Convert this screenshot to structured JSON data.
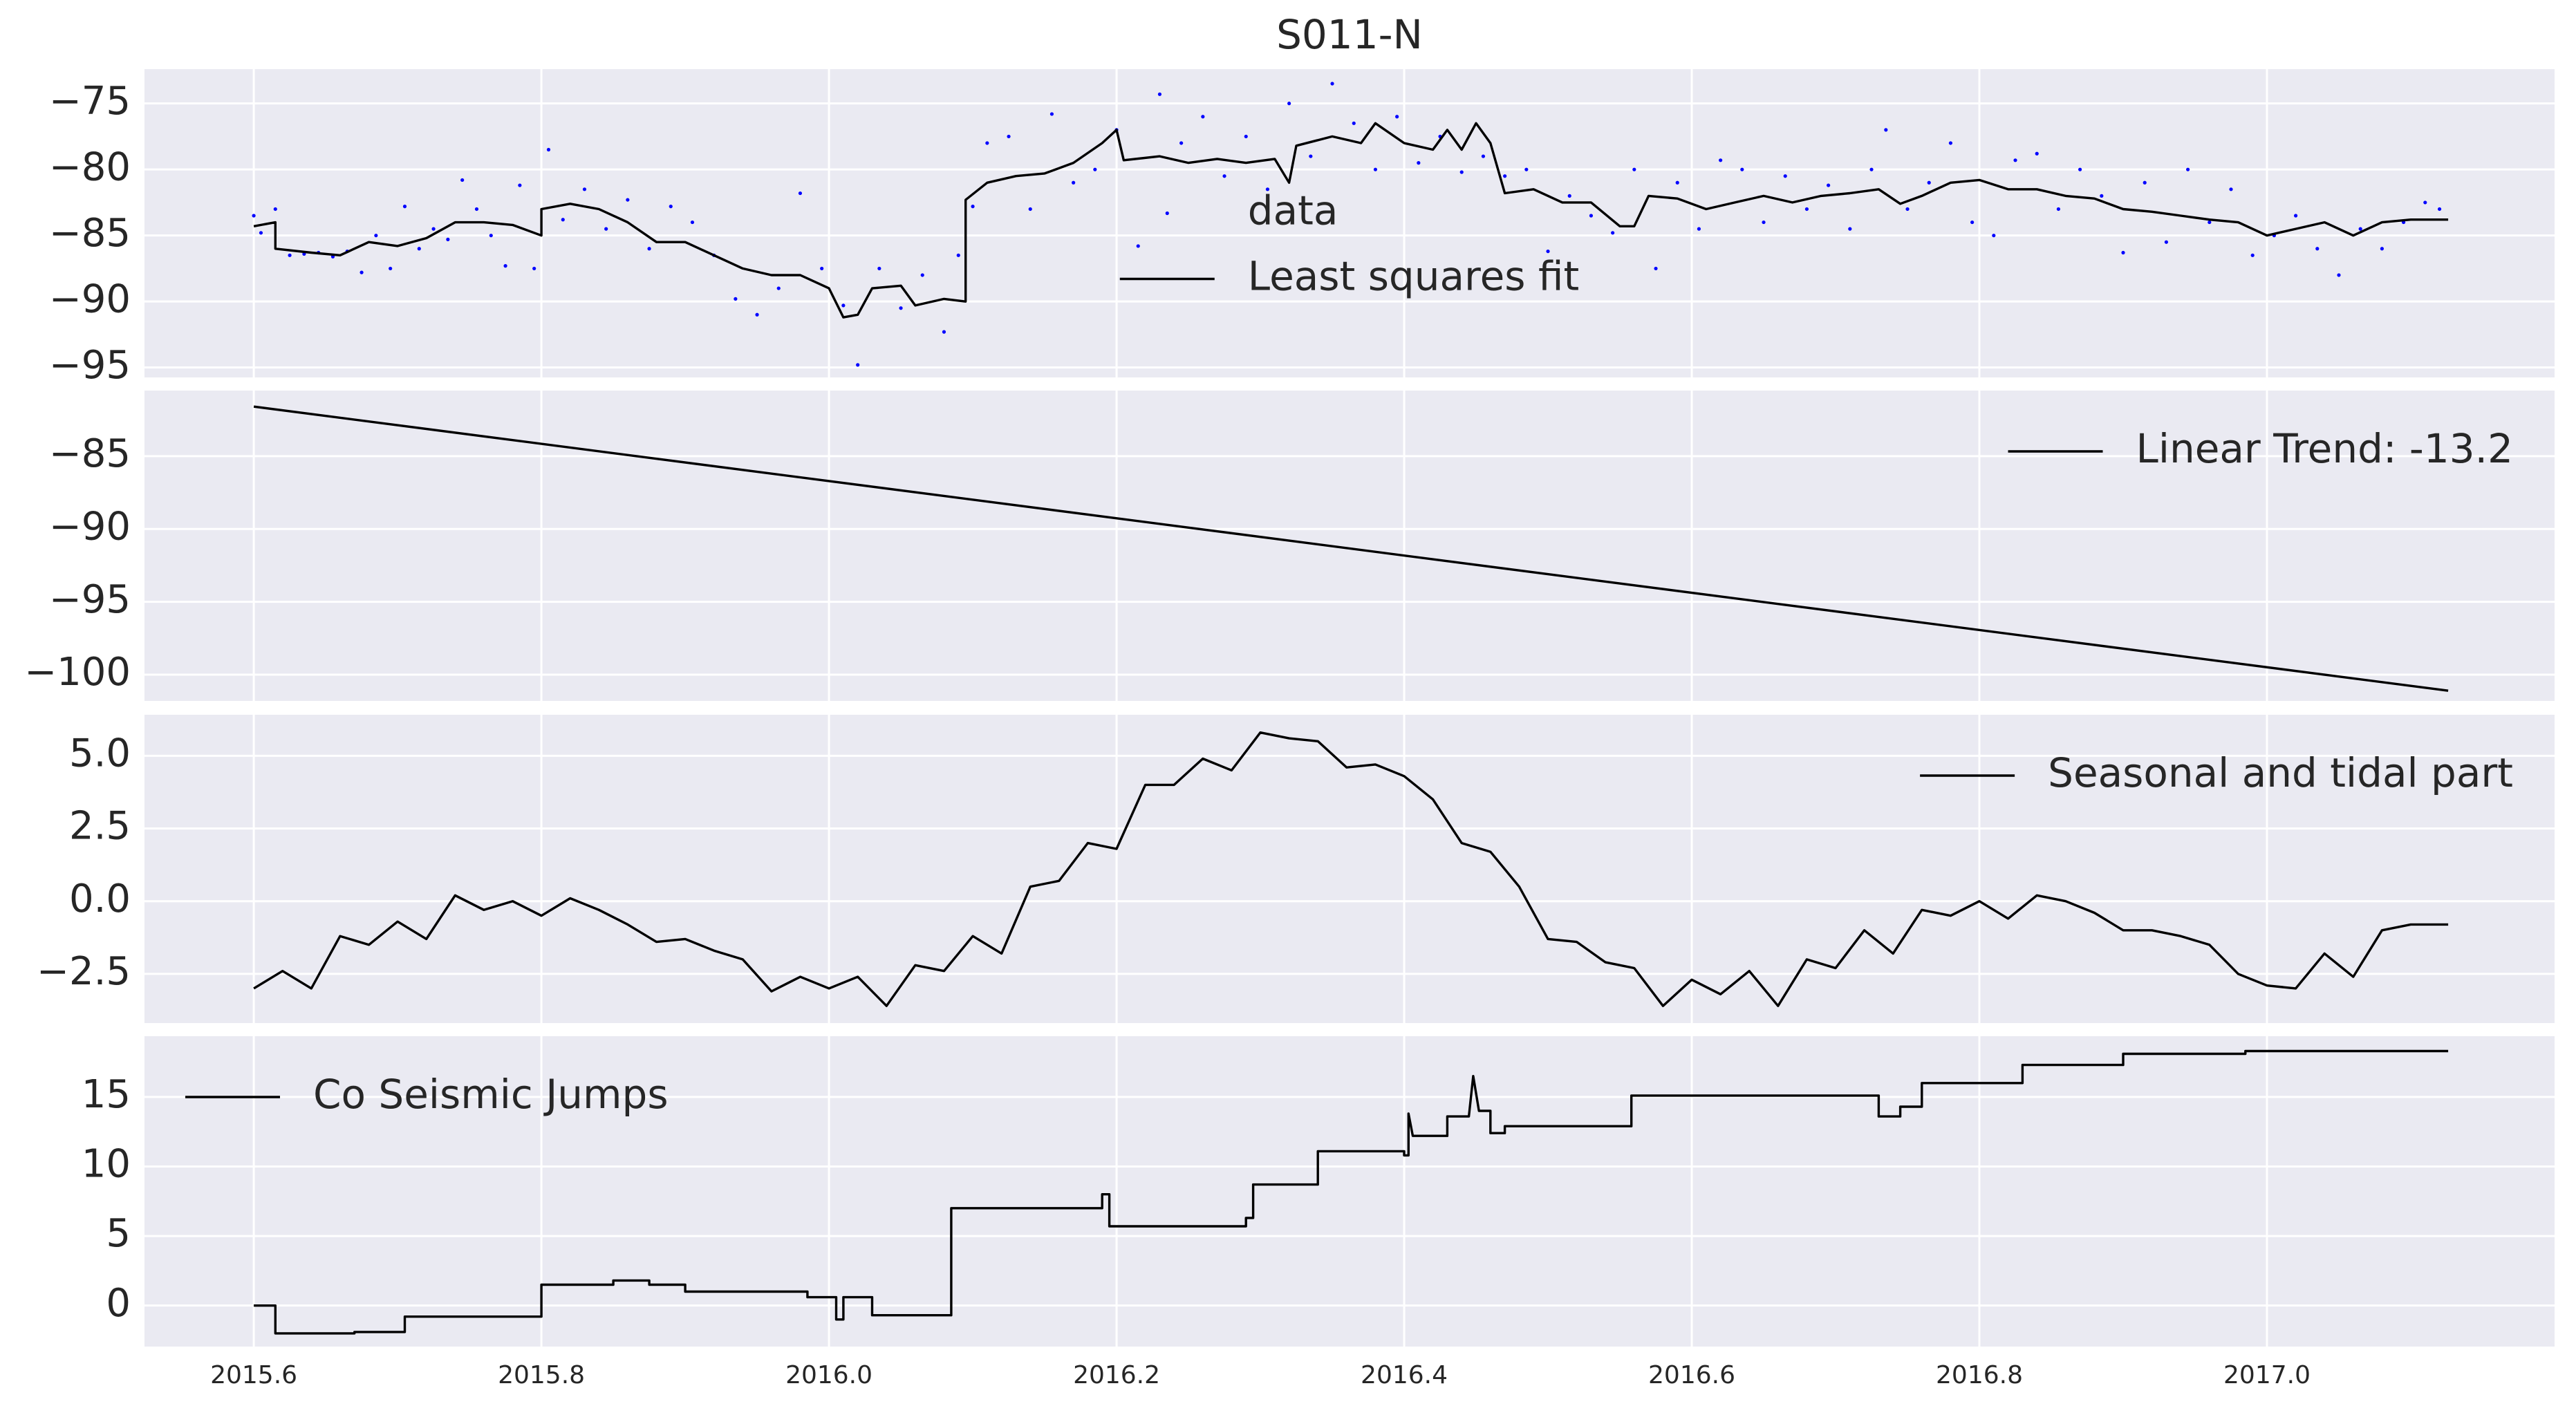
{
  "chart_data": [
    {
      "type": "line",
      "title": "S011-N",
      "legend": "center",
      "grid": true,
      "xlim": [
        2015.524,
        2017.2
      ],
      "ylim": [
        -95.75,
        -72.4
      ],
      "yticks": [
        {
          "value": -95,
          "label": "−95"
        },
        {
          "value": -90,
          "label": "−90"
        },
        {
          "value": -85,
          "label": "−85"
        },
        {
          "value": -80,
          "label": "−80"
        },
        {
          "value": -75,
          "label": "−75"
        }
      ],
      "series": [
        {
          "name": "data",
          "color": "#0000ff",
          "marker": true,
          "x": [
            2015.6,
            2015.605,
            2015.615,
            2015.625,
            2015.635,
            2015.645,
            2015.655,
            2015.665,
            2015.675,
            2015.685,
            2015.695,
            2015.705,
            2015.715,
            2015.725,
            2015.735,
            2015.745,
            2015.755,
            2015.765,
            2015.775,
            2015.785,
            2015.795,
            2015.805,
            2015.815,
            2015.83,
            2015.845,
            2015.86,
            2015.875,
            2015.89,
            2015.905,
            2015.92,
            2015.935,
            2015.95,
            2015.965,
            2015.98,
            2015.995,
            2016.01,
            2016.02,
            2016.035,
            2016.05,
            2016.065,
            2016.08,
            2016.09,
            2016.1,
            2016.11,
            2016.125,
            2016.14,
            2016.155,
            2016.17,
            2016.185,
            2016.2,
            2016.215,
            2016.23,
            2016.245,
            2016.26,
            2016.275,
            2016.29,
            2016.305,
            2016.32,
            2016.335,
            2016.35,
            2016.365,
            2016.38,
            2016.395,
            2016.41,
            2016.425,
            2016.44,
            2016.455,
            2016.47,
            2016.485,
            2016.5,
            2016.515,
            2016.53,
            2016.545,
            2016.56,
            2016.575,
            2016.59,
            2016.605,
            2016.62,
            2016.635,
            2016.65,
            2016.665,
            2016.68,
            2016.695,
            2016.71,
            2016.725,
            2016.735,
            2016.75,
            2016.765,
            2016.78,
            2016.795,
            2016.81,
            2016.825,
            2016.84,
            2016.855,
            2016.87,
            2016.885,
            2016.9,
            2016.915,
            2016.93,
            2016.945,
            2016.96,
            2016.975,
            2016.99,
            2017.005,
            2017.02,
            2017.035,
            2017.05,
            2017.065,
            2017.08,
            2017.095,
            2017.11,
            2017.12
          ],
          "values": [
            -83.5,
            -84.8,
            -83.0,
            -86.5,
            -86.4,
            -86.3,
            -86.6,
            -86.2,
            -87.8,
            -85.0,
            -87.5,
            -82.8,
            -86.0,
            -84.5,
            -85.3,
            -80.8,
            -83.0,
            -85.0,
            -87.3,
            -81.2,
            -87.5,
            -78.5,
            -83.8,
            -81.5,
            -84.5,
            -82.3,
            -86.0,
            -82.8,
            -84.0,
            -86.5,
            -89.8,
            -91.0,
            -89.0,
            -81.8,
            -87.5,
            -90.3,
            -94.8,
            -87.5,
            -90.5,
            -88.0,
            -92.3,
            -86.5,
            -82.8,
            -78.0,
            -77.5,
            -83.0,
            -75.8,
            -81.0,
            -80.0,
            -77.0,
            -85.8,
            -74.3,
            -78.0,
            -76.0,
            -80.5,
            -77.5,
            -81.5,
            -75.0,
            -79.0,
            -73.5,
            -76.5,
            -80.0,
            -76.0,
            -79.5,
            -77.5,
            -80.2,
            -79.0,
            -80.5,
            -80.0,
            -86.2,
            -82.0,
            -83.5,
            -84.8,
            -80.0,
            -87.5,
            -81.0,
            -84.5,
            -79.3,
            -80.0,
            -84.0,
            -80.5,
            -83.0,
            -81.2,
            -84.5,
            -80.0,
            -77.0,
            -83.0,
            -81.0,
            -78.0,
            -84.0,
            -85.0,
            -79.3,
            -78.8,
            -83.0,
            -80.0,
            -82.0,
            -86.3,
            -81.0,
            -85.5,
            -80.0,
            -84.0,
            -81.5,
            -86.5,
            -85.0,
            -83.5,
            -86.0,
            -88.0,
            -84.5,
            -86.0,
            -84.0,
            -82.5,
            -83.0
          ]
        },
        {
          "name": "Least squares fit",
          "color": "#000000",
          "x": [
            2015.6,
            2015.615,
            2015.615,
            2015.64,
            2015.66,
            2015.68,
            2015.7,
            2015.72,
            2015.74,
            2015.76,
            2015.78,
            2015.8,
            2015.8,
            2015.82,
            2015.84,
            2015.86,
            2015.88,
            2015.9,
            2015.92,
            2015.94,
            2015.96,
            2015.98,
            2016.0,
            2016.01,
            2016.02,
            2016.03,
            2016.05,
            2016.06,
            2016.08,
            2016.095,
            2016.095,
            2016.11,
            2016.13,
            2016.15,
            2016.17,
            2016.19,
            2016.2,
            2016.205,
            2016.23,
            2016.25,
            2016.27,
            2016.29,
            2016.31,
            2016.32,
            2016.325,
            2016.35,
            2016.37,
            2016.38,
            2016.4,
            2016.42,
            2016.43,
            2016.44,
            2016.45,
            2016.46,
            2016.47,
            2016.49,
            2016.51,
            2016.53,
            2016.55,
            2016.56,
            2016.57,
            2016.59,
            2016.61,
            2016.63,
            2016.65,
            2016.67,
            2016.69,
            2016.71,
            2016.73,
            2016.745,
            2016.76,
            2016.78,
            2016.8,
            2016.82,
            2016.84,
            2016.86,
            2016.88,
            2016.9,
            2016.92,
            2016.94,
            2016.96,
            2016.98,
            2017.0,
            2017.02,
            2017.04,
            2017.06,
            2017.08,
            2017.1,
            2017.126
          ],
          "values": [
            -84.3,
            -84.0,
            -86.0,
            -86.3,
            -86.5,
            -85.5,
            -85.8,
            -85.2,
            -84.0,
            -84.0,
            -84.2,
            -85.0,
            -83.0,
            -82.6,
            -83.0,
            -84.0,
            -85.5,
            -85.5,
            -86.5,
            -87.5,
            -88.0,
            -88.0,
            -89.0,
            -91.2,
            -91.0,
            -89.0,
            -88.8,
            -90.3,
            -89.8,
            -90.0,
            -82.3,
            -81.0,
            -80.5,
            -80.3,
            -79.5,
            -78.0,
            -77.0,
            -79.3,
            -79.0,
            -79.5,
            -79.2,
            -79.5,
            -79.2,
            -81.0,
            -78.2,
            -77.5,
            -78.0,
            -76.5,
            -78.0,
            -78.5,
            -77.0,
            -78.5,
            -76.5,
            -78.0,
            -81.8,
            -81.5,
            -82.5,
            -82.5,
            -84.3,
            -84.3,
            -82.0,
            -82.2,
            -83.0,
            -82.5,
            -82.0,
            -82.5,
            -82.0,
            -81.8,
            -81.5,
            -82.6,
            -82.0,
            -81.0,
            -80.8,
            -81.5,
            -81.5,
            -82.0,
            -82.2,
            -83.0,
            -83.2,
            -83.5,
            -83.8,
            -84.0,
            -85.0,
            -84.5,
            -84.0,
            -85.0,
            -84.0,
            -83.8,
            -83.8
          ]
        }
      ]
    },
    {
      "type": "line",
      "legend": "upper right",
      "grid": true,
      "xlim": [
        2015.524,
        2017.2
      ],
      "ylim": [
        -101.8,
        -80.5
      ],
      "yticks": [
        {
          "value": -100,
          "label": "−100"
        },
        {
          "value": -95,
          "label": "−95"
        },
        {
          "value": -90,
          "label": "−90"
        },
        {
          "value": -85,
          "label": "−85"
        }
      ],
      "series": [
        {
          "name": "Linear Trend: -13.2",
          "color": "#000000",
          "x": [
            2015.6,
            2017.126
          ],
          "values": [
            -81.6,
            -101.1
          ]
        }
      ]
    },
    {
      "type": "line",
      "legend": "upper right",
      "grid": true,
      "xlim": [
        2015.524,
        2017.2
      ],
      "ylim": [
        -4.19,
        6.41
      ],
      "yticks": [
        {
          "value": -2.5,
          "label": "−2.5"
        },
        {
          "value": 0,
          "label": "0.0"
        },
        2.5,
        {
          "value": 5,
          "label": "5.0"
        }
      ],
      "series": [
        {
          "name": "Seasonal and tidal part",
          "color": "#000000",
          "x": [
            2015.6,
            2015.62,
            2015.64,
            2015.66,
            2015.68,
            2015.7,
            2015.72,
            2015.74,
            2015.76,
            2015.78,
            2015.8,
            2015.82,
            2015.84,
            2015.86,
            2015.88,
            2015.9,
            2015.92,
            2015.94,
            2015.96,
            2015.98,
            2016.0,
            2016.02,
            2016.04,
            2016.06,
            2016.08,
            2016.1,
            2016.12,
            2016.14,
            2016.16,
            2016.18,
            2016.2,
            2016.22,
            2016.24,
            2016.26,
            2016.28,
            2016.3,
            2016.32,
            2016.34,
            2016.36,
            2016.38,
            2016.4,
            2016.42,
            2016.44,
            2016.46,
            2016.48,
            2016.5,
            2016.52,
            2016.54,
            2016.56,
            2016.58,
            2016.6,
            2016.62,
            2016.64,
            2016.66,
            2016.68,
            2016.7,
            2016.72,
            2016.74,
            2016.76,
            2016.78,
            2016.8,
            2016.82,
            2016.84,
            2016.86,
            2016.88,
            2016.9,
            2016.92,
            2016.94,
            2016.96,
            2016.98,
            2017.0,
            2017.02,
            2017.04,
            2017.06,
            2017.08,
            2017.1,
            2017.126
          ],
          "values": [
            -3.0,
            -2.4,
            -3.0,
            -1.2,
            -1.5,
            -0.7,
            -1.3,
            0.2,
            -0.3,
            0.0,
            -0.5,
            0.1,
            -0.3,
            -0.8,
            -1.4,
            -1.3,
            -1.7,
            -2.0,
            -3.1,
            -2.6,
            -3.0,
            -2.6,
            -3.6,
            -2.2,
            -2.4,
            -1.2,
            -1.8,
            0.5,
            0.7,
            2.0,
            1.8,
            4.0,
            4.0,
            4.9,
            4.5,
            5.8,
            5.6,
            5.5,
            4.6,
            4.7,
            4.3,
            3.5,
            2.0,
            1.7,
            0.5,
            -1.3,
            -1.4,
            -2.1,
            -2.3,
            -3.6,
            -2.7,
            -3.2,
            -2.4,
            -3.6,
            -2.0,
            -2.3,
            -1.0,
            -1.8,
            -0.3,
            -0.5,
            0.0,
            -0.6,
            0.2,
            0.0,
            -0.4,
            -1.0,
            -1.0,
            -1.2,
            -1.5,
            -2.5,
            -2.9,
            -3.0,
            -1.8,
            -2.6,
            -1.0,
            -0.8,
            -0.8
          ]
        }
      ]
    },
    {
      "type": "line",
      "legend": "upper left",
      "grid": true,
      "xlim": [
        2015.524,
        2017.2
      ],
      "ylim": [
        -2.95,
        19.37
      ],
      "xticks": [
        2015.6,
        2015.8,
        {
          "value": 2016,
          "label": "2016.0"
        },
        2016.2,
        2016.4,
        2016.6,
        2016.8,
        {
          "value": 2017,
          "label": "2017.0"
        }
      ],
      "yticks": [
        0,
        5,
        10,
        15
      ],
      "series": [
        {
          "name": "Co Seismic Jumps",
          "color": "#000000",
          "x": [
            2015.6,
            2015.615,
            2015.615,
            2015.67,
            2015.67,
            2015.705,
            2015.705,
            2015.8,
            2015.8,
            2015.85,
            2015.85,
            2015.875,
            2015.875,
            2015.9,
            2015.9,
            2015.985,
            2015.985,
            2016.005,
            2016.005,
            2016.01,
            2016.01,
            2016.03,
            2016.03,
            2016.085,
            2016.085,
            2016.19,
            2016.19,
            2016.195,
            2016.195,
            2016.29,
            2016.29,
            2016.295,
            2016.295,
            2016.34,
            2016.34,
            2016.4,
            2016.4,
            2016.403,
            2016.403,
            2016.406,
            2016.43,
            2016.43,
            2016.445,
            2016.448,
            2016.452,
            2016.46,
            2016.46,
            2016.47,
            2016.47,
            2016.558,
            2016.558,
            2016.73,
            2016.73,
            2016.745,
            2016.745,
            2016.76,
            2016.76,
            2016.83,
            2016.83,
            2016.9,
            2016.9,
            2016.985,
            2016.985,
            2017.126
          ],
          "values": [
            0,
            0,
            -2,
            -2,
            -1.9,
            -1.9,
            -0.8,
            -0.8,
            1.5,
            1.5,
            1.8,
            1.8,
            1.5,
            1.5,
            1.0,
            1.0,
            0.6,
            0.6,
            -1.0,
            -1.0,
            0.6,
            0.6,
            -0.7,
            -0.7,
            7.0,
            7.0,
            8.0,
            8.0,
            5.7,
            5.7,
            6.3,
            6.3,
            8.7,
            8.7,
            11.1,
            11.1,
            10.8,
            10.8,
            13.8,
            12.2,
            12.2,
            13.6,
            13.6,
            16.5,
            14.0,
            14.0,
            12.4,
            12.4,
            12.9,
            12.9,
            15.1,
            15.1,
            13.6,
            13.6,
            14.3,
            14.3,
            16.0,
            16.0,
            17.3,
            17.3,
            18.1,
            18.1,
            18.3,
            18.3
          ]
        }
      ]
    }
  ]
}
